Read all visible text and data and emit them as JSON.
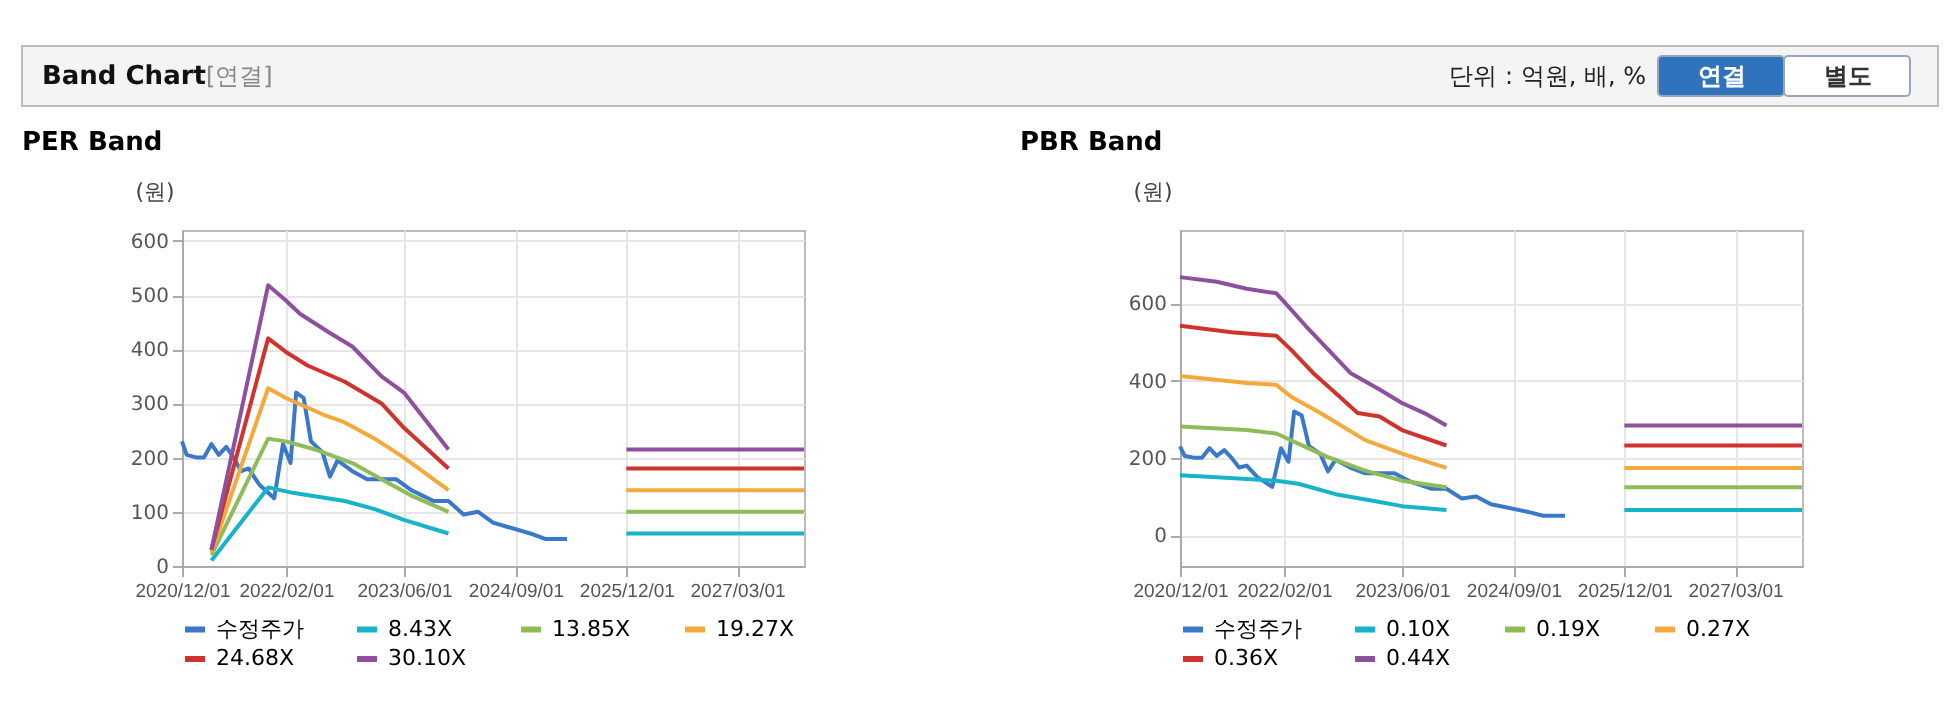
{
  "chart_data": [
    {
      "type": "other",
      "title": "Band Chart",
      "annotations": [
        "[연결]",
        "단위 : 억원, 배, %",
        "연결",
        "별도"
      ]
    },
    {
      "type": "line",
      "title": "PER Band",
      "ylabel": "(원)",
      "xlim": [
        "2020-12-01",
        "2027-12-01"
      ],
      "ylim": [
        0,
        620
      ],
      "yticks": [
        0,
        100,
        200,
        300,
        400,
        500,
        600
      ],
      "xticks": [
        {
          "value": "2020-12-01",
          "label": "2020/12/01"
        },
        {
          "value": "2022-02-01",
          "label": "2022/02/01"
        },
        {
          "value": "2023-06-01",
          "label": "2023/06/01"
        },
        {
          "value": "2024-09-01",
          "label": "2024/09/01"
        },
        {
          "value": "2025-12-01",
          "label": "2025/12/01"
        },
        {
          "value": "2027-03-01",
          "label": "2027/03/01"
        }
      ],
      "grid": true,
      "legend": "bottom",
      "line_style": "solid",
      "series": [
        {
          "name": "수정주가",
          "color": "#3a78c9",
          "x": [
            "2020-12-01",
            "2020-12-20",
            "2021-02-01",
            "2021-03-01",
            "2021-04-01",
            "2021-05-01",
            "2021-06-01",
            "2021-07-01",
            "2021-08-01",
            "2021-09-01",
            "2021-10-15",
            "2021-12-15",
            "2022-01-20",
            "2022-02-20",
            "2022-03-15",
            "2022-04-15",
            "2022-05-15",
            "2022-07-01",
            "2022-08-01",
            "2022-09-01",
            "2022-11-01",
            "2023-01-01",
            "2023-05-01",
            "2023-07-01",
            "2023-10-01",
            "2023-12-01",
            "2024-02-01",
            "2024-04-01",
            "2024-06-01",
            "2024-08-01",
            "2024-11-01",
            "2025-01-01",
            "2025-04-01"
          ],
          "values": [
            230,
            205,
            200,
            200,
            225,
            205,
            220,
            200,
            175,
            180,
            150,
            125,
            225,
            190,
            320,
            310,
            230,
            210,
            165,
            195,
            175,
            160,
            160,
            140,
            120,
            120,
            95,
            100,
            80,
            72,
            60,
            50,
            50
          ]
        },
        {
          "name": "8.43X",
          "color": "#17b3c9",
          "x": [
            "2021-04-01",
            "2021-11-20",
            "2022-03-01",
            "2022-10-01",
            "2023-02-01",
            "2023-06-01",
            "2023-12-01",
            "2024-12-01",
            "2025-12-01",
            "2027-12-01"
          ],
          "values": [
            10,
            145,
            135,
            120,
            105,
            85,
            60,
            null,
            60,
            60
          ]
        },
        {
          "name": "13.85X",
          "color": "#8fbc5a",
          "x": [
            "2021-04-01",
            "2021-11-20",
            "2022-02-01",
            "2022-06-01",
            "2022-11-01",
            "2023-03-01",
            "2023-07-01",
            "2023-12-01",
            "2024-12-01",
            "2025-12-01",
            "2027-12-01"
          ],
          "values": [
            20,
            235,
            230,
            215,
            190,
            160,
            130,
            100,
            null,
            100,
            100
          ]
        },
        {
          "name": "19.27X",
          "color": "#f3a93b",
          "x": [
            "2021-04-01",
            "2021-11-20",
            "2022-02-01",
            "2022-07-01",
            "2022-10-01",
            "2023-02-01",
            "2023-06-01",
            "2023-12-01",
            "2024-12-01",
            "2025-12-01",
            "2027-12-01"
          ],
          "values": [
            25,
            328,
            310,
            280,
            265,
            235,
            200,
            140,
            null,
            140,
            140
          ]
        },
        {
          "name": "24.68X",
          "color": "#d0332d",
          "x": [
            "2021-04-01",
            "2021-11-20",
            "2022-02-01",
            "2022-05-01",
            "2022-10-01",
            "2023-03-01",
            "2023-06-01",
            "2023-12-01",
            "2024-12-01",
            "2025-12-01",
            "2027-12-01"
          ],
          "values": [
            30,
            420,
            395,
            370,
            340,
            300,
            255,
            180,
            null,
            180,
            180
          ]
        },
        {
          "name": "30.10X",
          "color": "#8e4f9e",
          "x": [
            "2021-04-01",
            "2021-11-20",
            "2022-02-01",
            "2022-04-01",
            "2022-08-01",
            "2022-11-01",
            "2023-03-01",
            "2023-06-01",
            "2023-12-01",
            "2024-12-01",
            "2025-12-01",
            "2027-12-01"
          ],
          "values": [
            30,
            518,
            490,
            465,
            430,
            405,
            350,
            320,
            215,
            null,
            215,
            215
          ]
        }
      ]
    },
    {
      "type": "line",
      "title": "PBR Band",
      "ylabel": "(원)",
      "xlim": [
        "2020-12-01",
        "2027-12-01"
      ],
      "ylim": [
        -80,
        790
      ],
      "yticks": [
        0,
        200,
        400,
        600
      ],
      "xticks": [
        {
          "value": "2020-12-01",
          "label": "2020/12/01"
        },
        {
          "value": "2022-02-01",
          "label": "2022/02/01"
        },
        {
          "value": "2023-06-01",
          "label": "2023/06/01"
        },
        {
          "value": "2024-09-01",
          "label": "2024/09/01"
        },
        {
          "value": "2025-12-01",
          "label": "2025/12/01"
        },
        {
          "value": "2027-03-01",
          "label": "2027/03/01"
        }
      ],
      "grid": true,
      "legend": "bottom",
      "line_style": "solid",
      "series": [
        {
          "name": "수정주가",
          "color": "#3a78c9",
          "x": [
            "2020-12-01",
            "2020-12-20",
            "2021-02-01",
            "2021-03-01",
            "2021-04-01",
            "2021-05-01",
            "2021-06-01",
            "2021-07-01",
            "2021-08-01",
            "2021-09-01",
            "2021-10-15",
            "2021-12-15",
            "2022-01-20",
            "2022-02-20",
            "2022-03-15",
            "2022-04-15",
            "2022-05-15",
            "2022-07-01",
            "2022-08-01",
            "2022-09-01",
            "2022-11-01",
            "2023-01-01",
            "2023-05-01",
            "2023-07-01",
            "2023-10-01",
            "2023-12-01",
            "2024-02-01",
            "2024-04-01",
            "2024-06-01",
            "2024-08-01",
            "2024-11-01",
            "2025-01-01",
            "2025-04-01"
          ],
          "values": [
            230,
            205,
            200,
            200,
            225,
            205,
            220,
            200,
            175,
            180,
            150,
            125,
            225,
            190,
            320,
            310,
            230,
            210,
            165,
            195,
            175,
            160,
            160,
            140,
            120,
            120,
            95,
            100,
            80,
            72,
            60,
            50,
            50
          ]
        },
        {
          "name": "0.10X",
          "color": "#17b3c9",
          "x": [
            "2020-12-01",
            "2021-05-01",
            "2022-01-01",
            "2022-04-01",
            "2022-09-01",
            "2023-02-01",
            "2023-06-01",
            "2023-12-01",
            "2024-12-01",
            "2025-12-01",
            "2027-12-01"
          ],
          "values": [
            155,
            150,
            141,
            133,
            106,
            89,
            75,
            65,
            null,
            65,
            65
          ]
        },
        {
          "name": "0.19X",
          "color": "#8fbc5a",
          "x": [
            "2020-12-01",
            "2021-09-01",
            "2022-01-01",
            "2022-04-01",
            "2022-08-01",
            "2023-01-01",
            "2023-06-01",
            "2023-12-01",
            "2024-12-01",
            "2025-12-01",
            "2027-12-01"
          ],
          "values": [
            281,
            272,
            263,
            237,
            202,
            167,
            141,
            124,
            null,
            124,
            124
          ]
        },
        {
          "name": "0.27X",
          "color": "#f3a93b",
          "x": [
            "2020-12-01",
            "2021-09-01",
            "2022-01-01",
            "2022-03-01",
            "2022-07-01",
            "2023-01-01",
            "2023-06-01",
            "2023-12-01",
            "2024-12-01",
            "2025-12-01",
            "2027-12-01"
          ],
          "values": [
            412,
            394,
            389,
            359,
            316,
            246,
            211,
            174,
            null,
            174,
            174
          ]
        },
        {
          "name": "0.36X",
          "color": "#d0332d",
          "x": [
            "2020-12-01",
            "2021-07-01",
            "2022-01-01",
            "2022-03-01",
            "2022-06-01",
            "2022-09-01",
            "2022-12-01",
            "2023-03-01",
            "2023-06-01",
            "2023-12-01",
            "2024-12-01",
            "2025-12-01",
            "2027-12-01"
          ],
          "values": [
            542,
            525,
            516,
            481,
            420,
            368,
            316,
            307,
            272,
            232,
            null,
            232,
            232
          ]
        },
        {
          "name": "0.44X",
          "color": "#8e4f9e",
          "x": [
            "2020-12-01",
            "2021-05-01",
            "2021-09-01",
            "2022-01-01",
            "2022-02-15",
            "2022-05-01",
            "2022-08-01",
            "2022-11-01",
            "2023-03-01",
            "2023-06-01",
            "2023-09-01",
            "2023-12-01",
            "2024-12-01",
            "2025-12-01",
            "2027-12-01"
          ],
          "values": [
            668,
            656,
            638,
            626,
            595,
            542,
            481,
            420,
            377,
            342,
            316,
            284,
            null,
            284,
            284
          ]
        }
      ]
    }
  ]
}
